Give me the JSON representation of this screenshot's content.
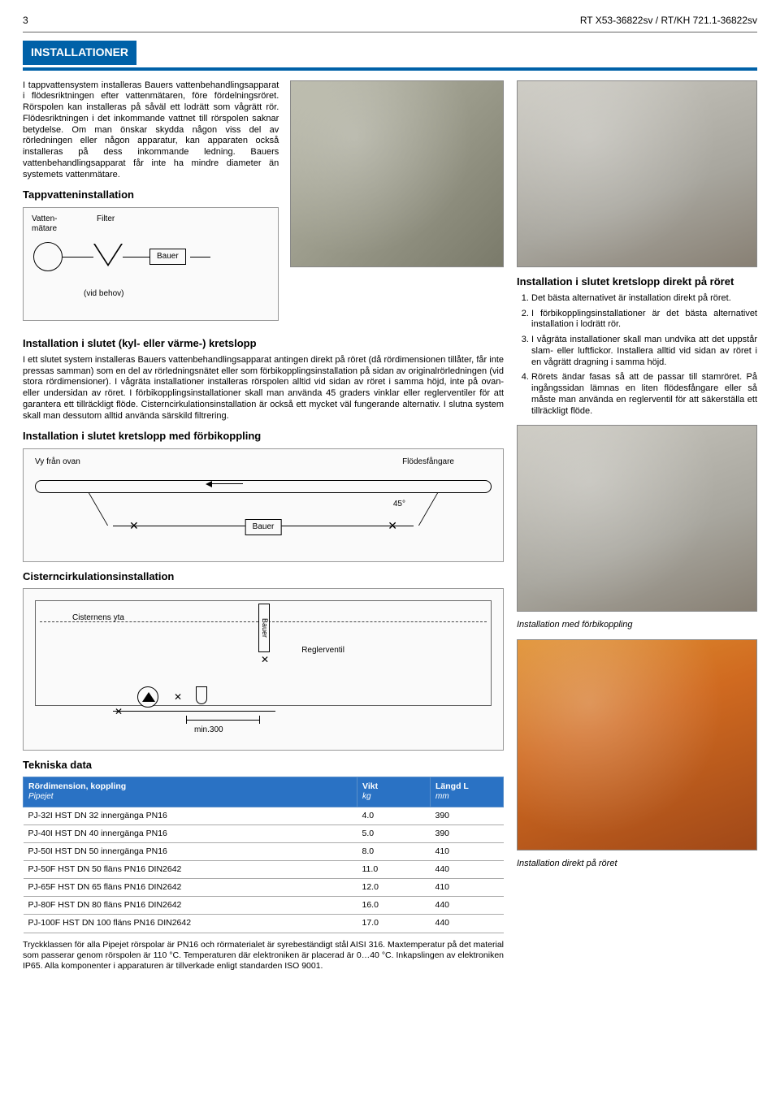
{
  "header": {
    "page_num": "3",
    "doc_ref": "RT X53-36822sv / RT/KH 721.1-36822sv"
  },
  "banner": "INSTALLATIONER",
  "intro_para": "I tappvattensystem installeras Bauers vattenbehandlingsapparat i flödesriktningen efter vattenmätaren, före fördelningsröret. Rörspolen kan installeras på såväl ett lodrätt som vågrätt rör. Flödesriktningen i det inkommande vattnet till rörspolen saknar betydelse. Om man önskar skydda någon viss del av rörledningen eller någon apparatur, kan apparaten också installeras på dess inkommande ledning. Bauers vattenbehandlingsapparat får inte ha mindre diameter än systemets vattenmätare.",
  "h_tappvatten": "Tappvatteninstallation",
  "diag1": {
    "vattenmatare": "Vatten-\nmätare",
    "filter": "Filter",
    "bauer": "Bauer",
    "vid_behov": "(vid behov)"
  },
  "h_slutet": "Installation i slutet (kyl- eller värme-) kretslopp",
  "para_slutet": "I ett slutet system installeras Bauers vattenbehandlingsapparat antingen direkt på röret (då rördimensionen tillåter, får inte pressas samman) som en del av rörledningsnätet eller som förbikopplingsinstallation på sidan av originalrörledningen (vid stora rördimensioner). I vågräta installationer installeras rörspolen alltid vid sidan av röret i samma höjd, inte på ovan- eller undersidan av röret. I förbikopplingsinstallationer skall man använda 45 graders vinklar eller reglerventiler för att garantera ett tillräckligt flöde. Cisterncirkulationsinstallation är också ett mycket väl fungerande alternativ. I slutna system skall man dessutom alltid använda särskild filtrering.",
  "h_forbikoppling": "Installation i slutet kretslopp med förbikoppling",
  "diag2": {
    "vy": "Vy från ovan",
    "flodesfangare": "Flödesfångare",
    "bauer": "Bauer",
    "angle": "45°"
  },
  "h_cistern": "Cisterncirkulationsinstallation",
  "diag3": {
    "cisternens_yta": "Cisternens yta",
    "bauer": "Bauer",
    "reglerventil": "Reglerventil",
    "min300": "min.300"
  },
  "h_tekniska": "Tekniska data",
  "table": {
    "col1_main": "Rördimension, koppling",
    "col1_sub": "Pipejet",
    "col2_main": "Vikt",
    "col2_sub": "kg",
    "col3_main": "Längd L",
    "col3_sub": "mm",
    "rows": [
      [
        "PJ-32I  HST DN 32 innergänga PN16",
        "4.0",
        "390"
      ],
      [
        "PJ-40I  HST DN 40 innergänga PN16",
        "5.0",
        "390"
      ],
      [
        "PJ-50I  HST DN 50 innergänga PN16",
        "8.0",
        "410"
      ],
      [
        "PJ-50F  HST DN 50 fläns PN16 DIN2642",
        "11.0",
        "440"
      ],
      [
        "PJ-65F  HST DN 65 fläns PN16 DIN2642",
        "12.0",
        "410"
      ],
      [
        "PJ-80F  HST DN 80 fläns PN16 DIN2642",
        "16.0",
        "440"
      ],
      [
        "PJ-100F HST DN 100 fläns PN16 DIN2642",
        "17.0",
        "440"
      ]
    ]
  },
  "footer_para": "Tryckklassen för alla Pipejet rörspolar är PN16 och rörmaterialet är syrebeständigt stål AISI 316. Maxtemperatur på det material som passerar genom rörspolen är 110 °C. Temperaturen där elektroniken är placerad är 0…40 °C. Inkapslingen av elektroniken IP65. Alla komponenter i apparaturen är tillverkade enligt standarden ISO 9001.",
  "right": {
    "h_direkt": "Installation i slutet kretslopp direkt på röret",
    "list": [
      "Det bästa alternativet är installation direkt på röret.",
      "I förbikopplingsinstallationer är det bästa alternativet installation i lodrätt rör.",
      "I vågräta installationer skall man undvika att det uppstår slam- eller luftfickor. Installera alltid vid sidan av röret i en vågrätt dragning i samma höjd.",
      "Rörets ändar fasas så att de passar till stamröret. På ingångssidan lämnas en liten flödesfångare eller så måste man använda en reglerventil för att säkerställa ett tillräckligt flöde."
    ],
    "cap_forbikoppling": "Installation med förbikoppling",
    "cap_direkt": "Installation direkt på röret"
  },
  "colors": {
    "banner_bg": "#0061a8",
    "table_header_bg": "#2a72c4"
  }
}
